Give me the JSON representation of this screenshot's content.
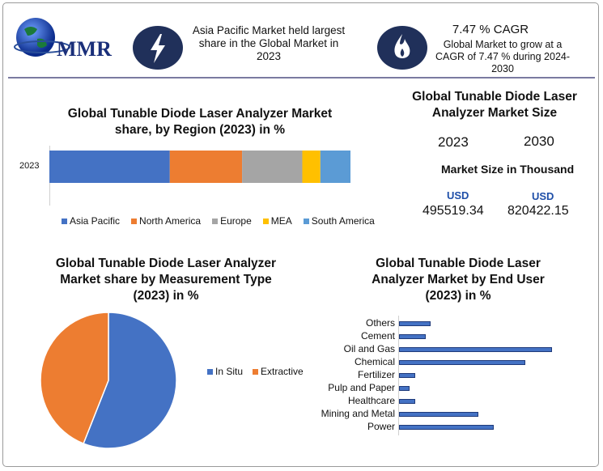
{
  "header": {
    "logo_text": "MMR",
    "fact1": "Asia Pacific Market held largest share in the Global Market in 2023",
    "fact1_icon": "lightning-icon",
    "fact2_title": "7.47 % CAGR",
    "fact2_text": "Global Market to grow at a CAGR of 7.47 % during 2024-2030",
    "fact2_icon": "flame-icon",
    "icon_bg": "#20305a"
  },
  "market_size": {
    "title": "Global Tunable Diode Laser Analyzer Market Size",
    "year1": "2023",
    "year2": "2030",
    "subtitle": "Market Size in Thousand",
    "currency1": "USD",
    "currency2": "USD",
    "value1": "495519.34",
    "value2": "820422.15",
    "currency_color": "#1f4fa8"
  },
  "chart_data": [
    {
      "type": "bar",
      "orientation": "horizontal-stacked",
      "title": "Global Tunable Diode Laser Analyzer Market share, by Region (2023) in %",
      "categories": [
        "2023"
      ],
      "series": [
        {
          "name": "Asia Pacific",
          "values": [
            40
          ],
          "color": "#4472c4"
        },
        {
          "name": "North America",
          "values": [
            24
          ],
          "color": "#ed7d31"
        },
        {
          "name": "Europe",
          "values": [
            20
          ],
          "color": "#a5a5a5"
        },
        {
          "name": "MEA",
          "values": [
            6
          ],
          "color": "#ffc000"
        },
        {
          "name": "South America",
          "values": [
            10
          ],
          "color": "#5b9bd5"
        }
      ],
      "legend": "bottom"
    },
    {
      "type": "pie",
      "title": "Global Tunable Diode Laser Analyzer Market share by Measurement Type (2023) in %",
      "categories": [
        "In Situ",
        "Extractive"
      ],
      "values": [
        56,
        44
      ],
      "colors": [
        "#4472c4",
        "#ed7d31"
      ],
      "legend": "right"
    },
    {
      "type": "bar",
      "orientation": "horizontal",
      "title": "Global Tunable Diode Laser Analyzer Market by End User (2023) in %",
      "categories": [
        "Others",
        "Cement",
        "Oil and Gas",
        "Chemical",
        "Fertilizer",
        "Pulp and Paper",
        "Healthcare",
        "Mining and Metal",
        "Power"
      ],
      "values": [
        6,
        5,
        29,
        24,
        3,
        2,
        3,
        15,
        18
      ],
      "color": "#4472c4",
      "xlim": [
        0,
        30
      ]
    }
  ]
}
